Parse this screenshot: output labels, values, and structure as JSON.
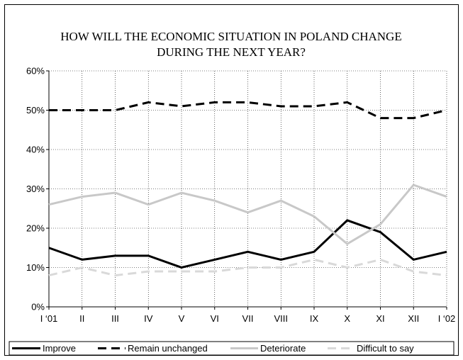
{
  "chart_data": {
    "type": "line",
    "title_lines": [
      "HOW WILL THE ECONOMIC SITUATION IN POLAND CHANGE",
      "DURING THE NEXT YEAR?"
    ],
    "xlabel": "",
    "ylabel": "",
    "categories": [
      "I ‘01",
      "II",
      "III",
      "IV",
      "V",
      "VI",
      "VII",
      "VIII",
      "IX",
      "X",
      "XI",
      "XII",
      "I ‘02"
    ],
    "y_ticks": [
      "0%",
      "10%",
      "20%",
      "30%",
      "40%",
      "50%",
      "60%"
    ],
    "ylim": [
      0,
      60
    ],
    "grid": "vertical and horizontal, dotted",
    "legend_position": "bottom",
    "series": [
      {
        "name": "Improve",
        "color": "#000000",
        "style": "solid",
        "values": [
          15,
          12,
          13,
          13,
          10,
          12,
          14,
          12,
          14,
          22,
          19,
          12,
          14
        ]
      },
      {
        "name": "Remain unchanged",
        "color": "#000000",
        "style": "dashed",
        "values": [
          50,
          50,
          50,
          52,
          51,
          52,
          52,
          51,
          51,
          52,
          48,
          48,
          50
        ]
      },
      {
        "name": "Deteriorate",
        "color": "#c8c8c8",
        "style": "solid",
        "values": [
          26,
          28,
          29,
          26,
          29,
          27,
          24,
          27,
          23,
          16,
          21,
          31,
          28
        ]
      },
      {
        "name": "Difficult to say",
        "color": "#d9d9d9",
        "style": "dashed",
        "values": [
          8,
          10,
          8,
          9,
          9,
          9,
          10,
          10,
          12,
          10,
          12,
          9,
          8
        ]
      }
    ]
  }
}
